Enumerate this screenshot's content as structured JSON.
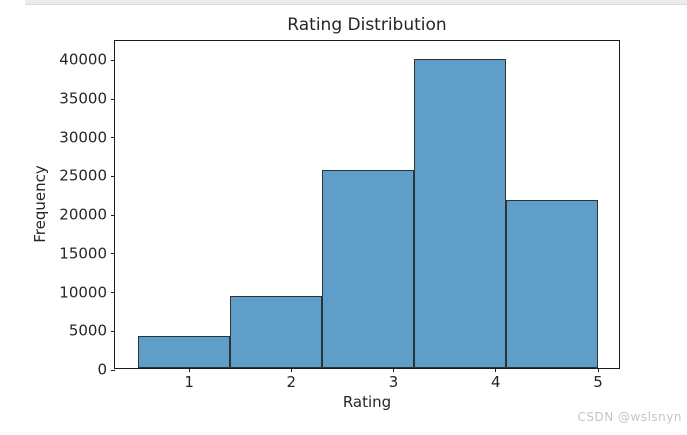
{
  "watermark": {
    "text": "CSDN @wslsnyn",
    "color": "#c6c6c6"
  },
  "top_edge_color": "#ececec",
  "chart_data": {
    "type": "bar",
    "subtype": "histogram",
    "title": "Rating Distribution",
    "xlabel": "Rating",
    "ylabel": "Frequency",
    "bin_edges": [
      0.5,
      1.4,
      2.3,
      3.2,
      4.1,
      5.0
    ],
    "values": [
      4181,
      9342,
      25597,
      39954,
      21762
    ],
    "x_ticks": [
      1,
      2,
      3,
      4,
      5
    ],
    "y_ticks": [
      0,
      5000,
      10000,
      15000,
      20000,
      25000,
      30000,
      35000,
      40000
    ],
    "xlim": [
      0.275,
      5.225
    ],
    "ylim": [
      0,
      42500
    ],
    "grid": false,
    "legend": null,
    "bar_fill": "#5E9EC9",
    "bar_edge": "#2e3338",
    "axis_color": "#1a1a1a",
    "text_color": "#262626"
  }
}
